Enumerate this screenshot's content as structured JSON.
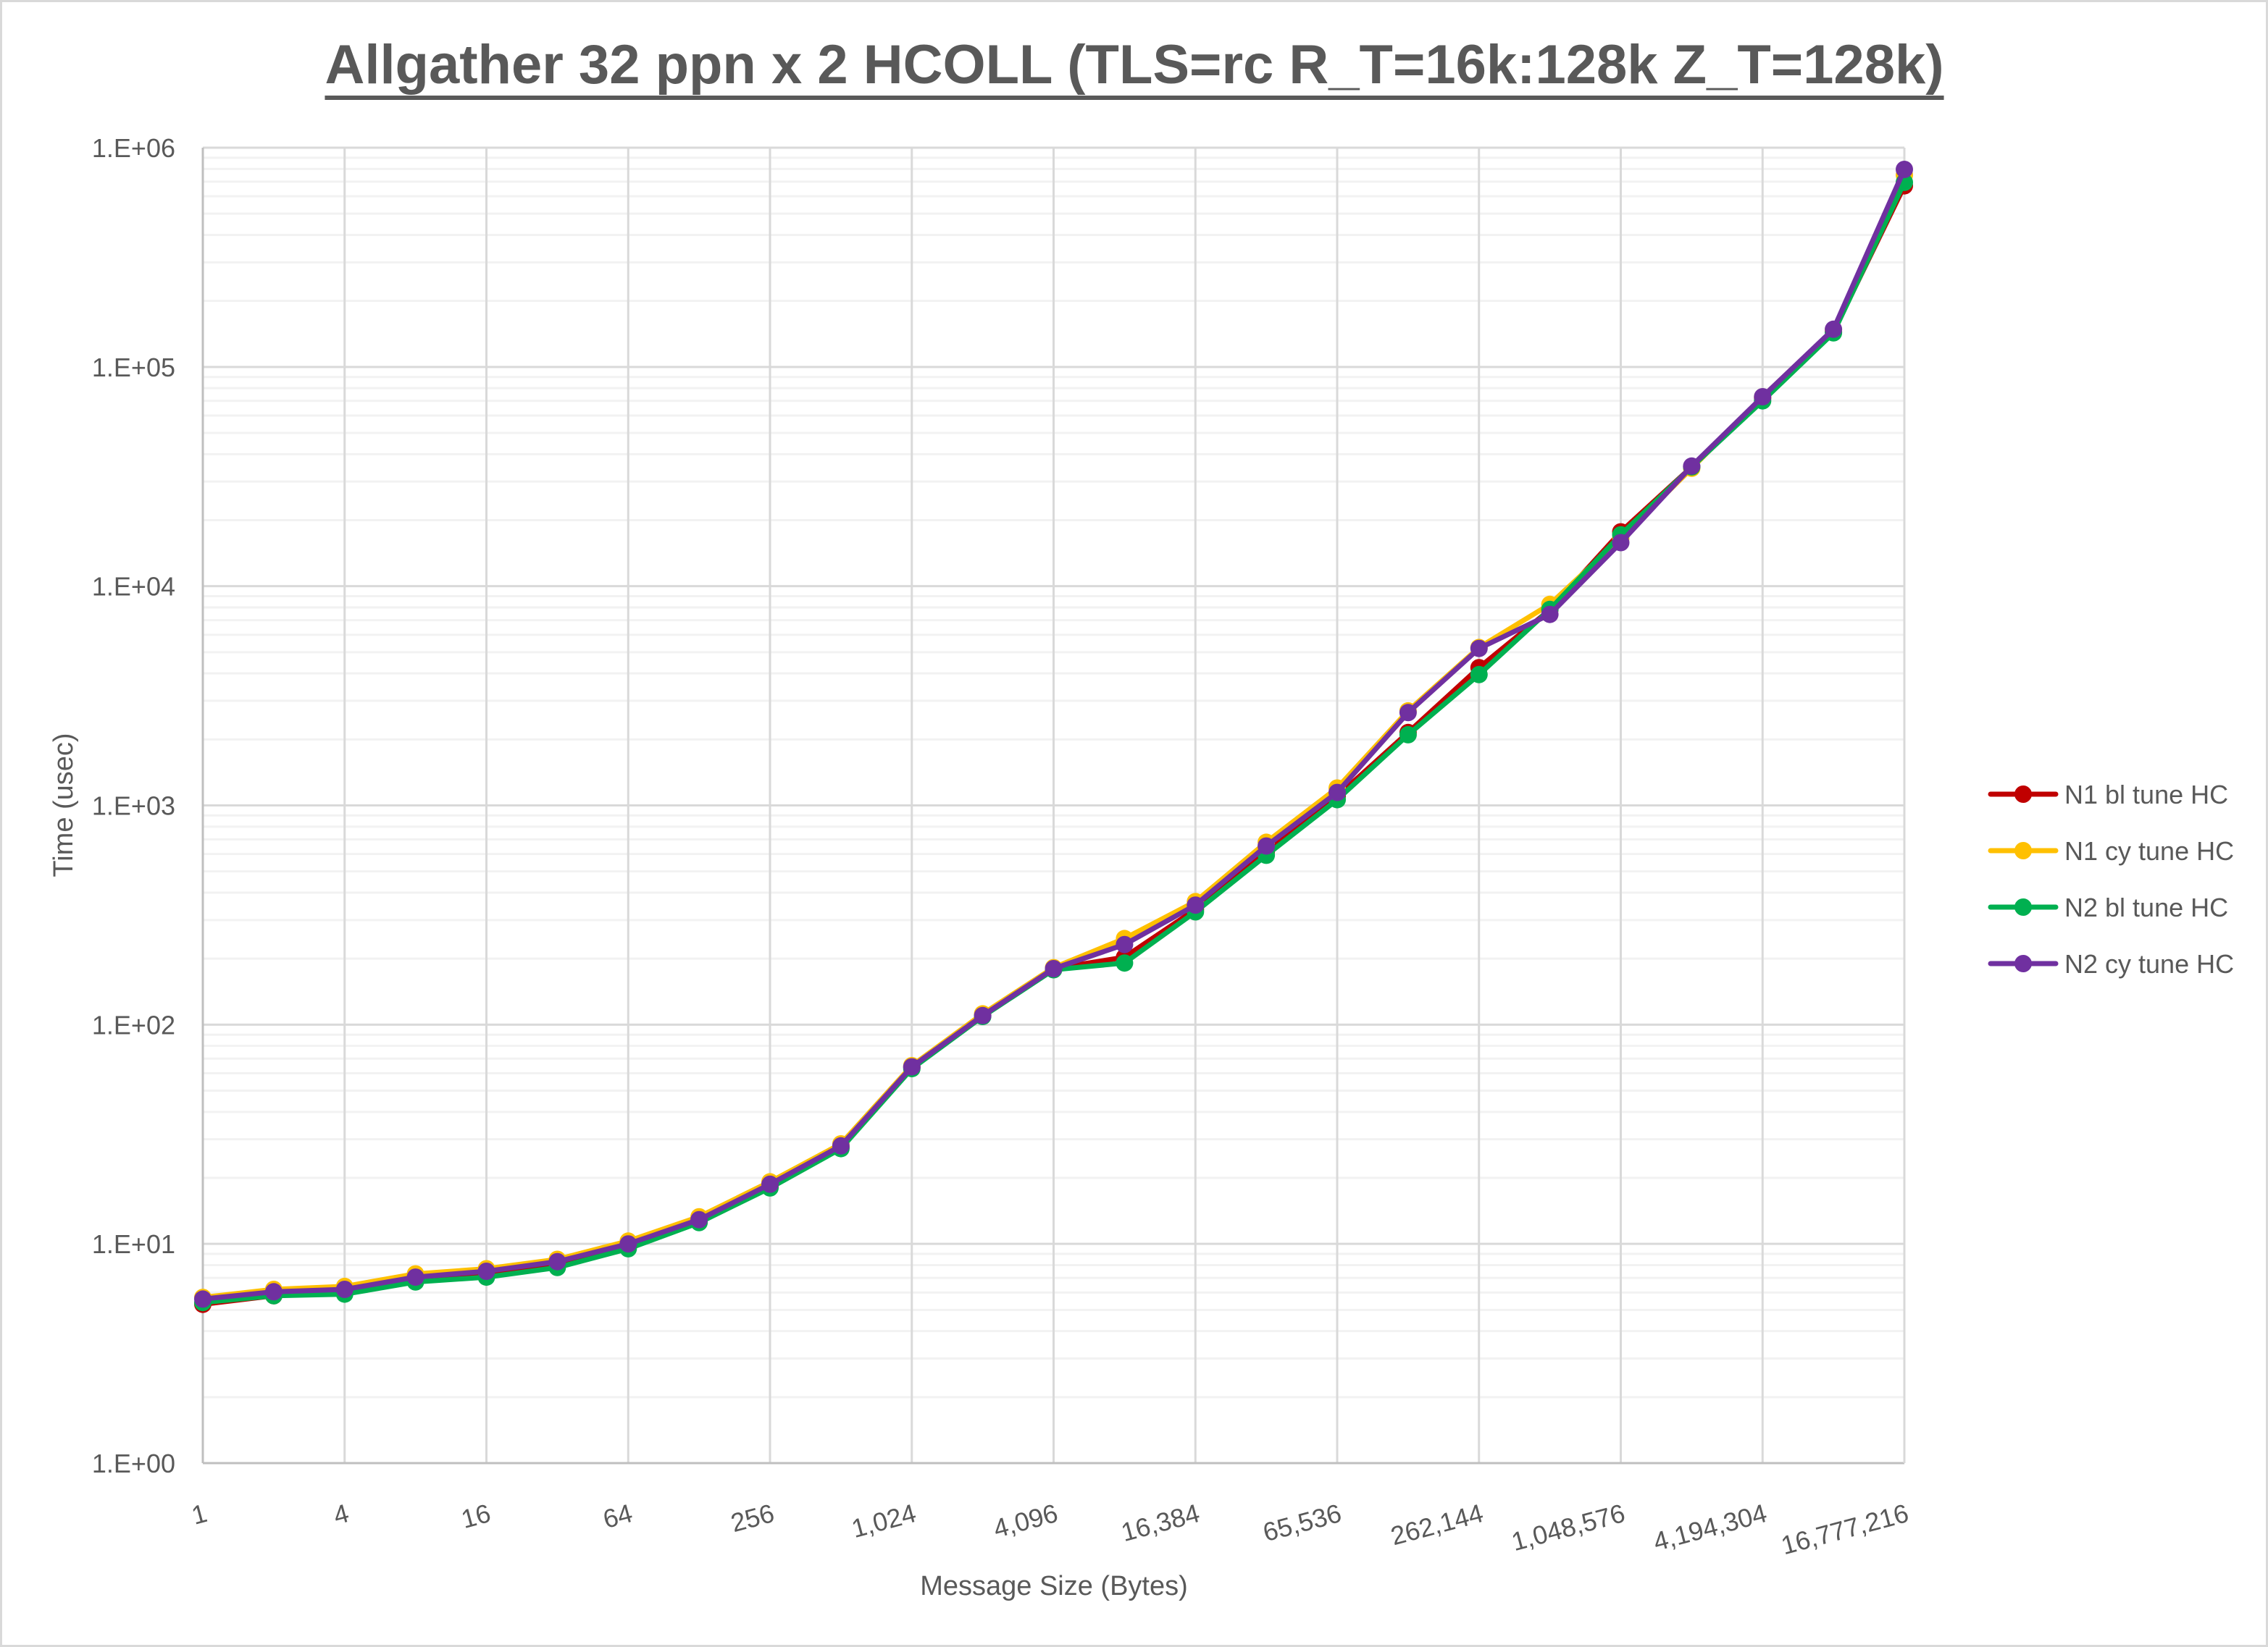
{
  "chart_data": {
    "type": "line",
    "title": "Allgather 32 ppn x 2 HCOLL (TLS=rc R_T=16k:128k Z_T=128k)",
    "xlabel": "Message Size (Bytes)",
    "ylabel": "Time (usec)",
    "x_scale": "log2",
    "y_scale": "log10",
    "xlim": [
      1,
      16777216
    ],
    "ylim": [
      1,
      1000000
    ],
    "grid": {
      "major_x": true,
      "major_y": true,
      "minor_y": true
    },
    "legend_position": "right",
    "x_tick_labels": [
      "1",
      "4",
      "16",
      "64",
      "256",
      "1,024",
      "4,096",
      "16,384",
      "65,536",
      "262,144",
      "1,048,576",
      "4,194,304",
      "16,777,216"
    ],
    "y_tick_labels": [
      "1.E+00",
      "1.E+01",
      "1.E+02",
      "1.E+03",
      "1.E+04",
      "1.E+05",
      "1.E+06"
    ],
    "x": [
      1,
      2,
      4,
      8,
      16,
      32,
      64,
      128,
      256,
      512,
      1024,
      2048,
      4096,
      8192,
      16384,
      32768,
      65536,
      131072,
      262144,
      524288,
      1048576,
      2097152,
      4194304,
      8388608,
      16777216
    ],
    "series": [
      {
        "name": "N1 bl tune HC",
        "color": "#C00000",
        "values": [
          5.3,
          5.8,
          6.0,
          6.8,
          7.2,
          8.0,
          9.7,
          12.7,
          18.3,
          27.6,
          64,
          110,
          180,
          203,
          335,
          615,
          1100,
          2150,
          4250,
          7800,
          17700,
          35000,
          72000,
          145000,
          670000
        ]
      },
      {
        "name": "N1 cy tune HC",
        "color": "#FFC000",
        "values": [
          5.7,
          6.2,
          6.4,
          7.3,
          7.7,
          8.5,
          10.3,
          13.3,
          19.2,
          28.6,
          65,
          112,
          182,
          247,
          364,
          679,
          1200,
          2700,
          5250,
          8260,
          16500,
          34500,
          73000,
          148000,
          750000
        ]
      },
      {
        "name": "N2 bl tune HC",
        "color": "#00B050",
        "values": [
          5.4,
          5.8,
          5.9,
          6.7,
          7.05,
          7.8,
          9.5,
          12.5,
          18.0,
          27.2,
          63,
          109,
          178,
          191,
          327,
          592,
          1062,
          2100,
          3950,
          7830,
          17150,
          35000,
          70000,
          143000,
          695000
        ]
      },
      {
        "name": "N2 cy tune HC",
        "color": "#7030A0",
        "values": [
          5.6,
          6.05,
          6.2,
          7.05,
          7.5,
          8.3,
          10.0,
          12.9,
          18.7,
          28.0,
          64.2,
          110,
          180,
          232,
          351,
          653,
          1146,
          2650,
          5200,
          7430,
          15800,
          35300,
          73100,
          148500,
          796000
        ]
      }
    ]
  },
  "legend": {
    "items": [
      {
        "label": "N1 bl tune HC",
        "color": "#C00000"
      },
      {
        "label": "N1 cy tune HC",
        "color": "#FFC000"
      },
      {
        "label": "N2 bl tune HC",
        "color": "#00B050"
      },
      {
        "label": "N2 cy tune HC",
        "color": "#7030A0"
      }
    ]
  },
  "style": {
    "text_color": "#595959",
    "major_grid_color": "#d9d9d9",
    "minor_grid_color": "#f2f2f2",
    "axis_color": "#bfbfbf",
    "frame_color": "#d9d9d9"
  }
}
